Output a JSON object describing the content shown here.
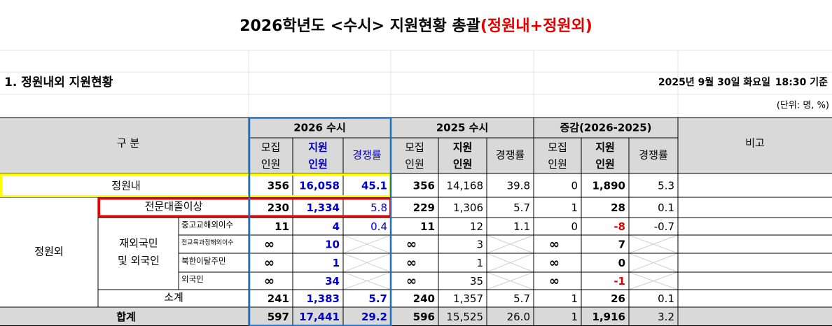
{
  "header": {
    "title": "2026학년도 <수시> 지원현황 총괄",
    "title_highlight": "(정원내+정원외)"
  },
  "section": {
    "title": "1. 정원내외 지원현황",
    "date": "2025년 9월 30일 화요일",
    "time": "18:30 기준",
    "unit": "(단위: 명, %)"
  },
  "table": {
    "corner": "구 분",
    "groups": [
      "2026 수시",
      "2025 수시",
      "증감(2026-2025)"
    ],
    "note": "비고",
    "sub_headers": [
      [
        "모집",
        "인원"
      ],
      [
        "지원",
        "인원"
      ],
      [
        "경쟁률"
      ],
      [
        "모집",
        "인원"
      ],
      [
        "지원",
        "인원"
      ],
      [
        "경쟁률"
      ],
      [
        "모집",
        "인원"
      ],
      [
        "지원",
        "인원"
      ],
      [
        "경쟁률"
      ]
    ],
    "side_labels": {
      "outside": "정원외",
      "foreign": [
        "재외국민",
        "및 외국인"
      ]
    },
    "rows": [
      {
        "label": "정원내",
        "cells": [
          "356",
          "16,058",
          "45.1",
          "356",
          "14,168",
          "39.8",
          "0",
          "1,890",
          "5.3"
        ]
      },
      {
        "label": "전문대졸이상",
        "cells": [
          "230",
          "1,334",
          "5.8",
          "229",
          "1,306",
          "5.7",
          "1",
          "28",
          "0.1"
        ]
      },
      {
        "label": "중고교해외이수",
        "cells": [
          "11",
          "4",
          "0.4",
          "11",
          "12",
          "1.1",
          "0",
          "-8",
          "-0.7"
        ]
      },
      {
        "label": "전교육과정해외이수",
        "cells": [
          "∞",
          "10",
          null,
          "∞",
          "3",
          null,
          "∞",
          "7",
          null
        ]
      },
      {
        "label": "북한이탈주민",
        "cells": [
          "∞",
          "1",
          null,
          "∞",
          "1",
          null,
          "∞",
          "0",
          null
        ]
      },
      {
        "label": "외국인",
        "cells": [
          "∞",
          "34",
          null,
          "∞",
          "35",
          null,
          "∞",
          "-1",
          null
        ]
      },
      {
        "label": "소계",
        "cells": [
          "241",
          "1,383",
          "5.7",
          "240",
          "1,357",
          "5.7",
          "1",
          "26",
          "0.1"
        ]
      },
      {
        "label": "합계",
        "cells": [
          "597",
          "17,441",
          "29.2",
          "596",
          "15,525",
          "26.0",
          "1",
          "1,916",
          "3.2"
        ]
      }
    ]
  }
}
